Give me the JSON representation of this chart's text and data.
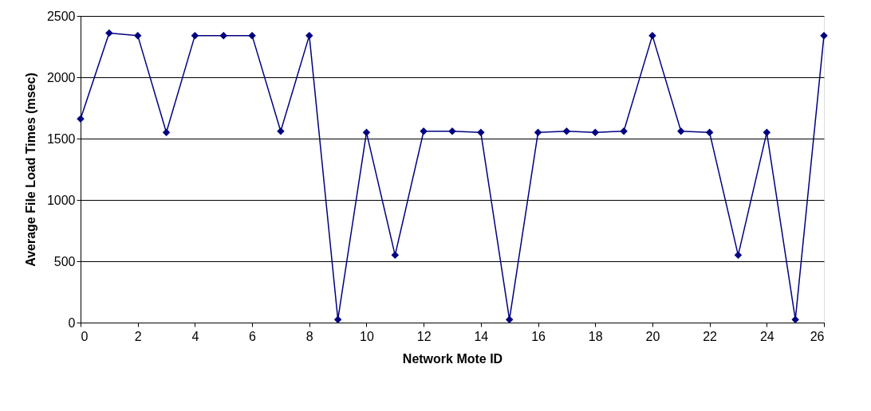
{
  "chart_data": {
    "type": "line",
    "xlabel": "Network Mote ID",
    "ylabel": "Average File Load Times (msec)",
    "x": [
      0,
      1,
      2,
      3,
      4,
      5,
      6,
      7,
      8,
      9,
      10,
      11,
      12,
      13,
      14,
      15,
      16,
      17,
      18,
      19,
      20,
      21,
      22,
      23,
      24,
      25,
      26
    ],
    "series": [
      {
        "color": "#000080",
        "values": [
          1660,
          2360,
          2340,
          1550,
          2340,
          2340,
          2340,
          1560,
          2340,
          25,
          1550,
          550,
          1560,
          1560,
          1550,
          25,
          1550,
          1560,
          1550,
          1560,
          2340,
          1560,
          1550,
          550,
          1550,
          25,
          2340
        ]
      }
    ],
    "xlim": [
      0,
      26
    ],
    "xticks": [
      0,
      2,
      4,
      6,
      8,
      10,
      12,
      14,
      16,
      18,
      20,
      22,
      24,
      26
    ],
    "ylim": [
      0,
      2500
    ],
    "yticks": [
      0,
      500,
      1000,
      1500,
      2000,
      2500
    ],
    "grid": "y",
    "legend": false,
    "marker": "diamond",
    "line_style": "solid"
  }
}
